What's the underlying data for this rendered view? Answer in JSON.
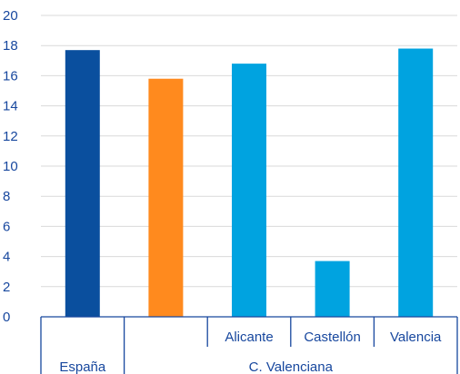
{
  "chart_data": {
    "type": "bar",
    "categories": [
      "España",
      "C. Valenciana",
      "Alicante",
      "Castellón",
      "Valencia"
    ],
    "values": [
      17.7,
      15.8,
      16.8,
      3.7,
      17.8
    ],
    "colors": [
      "#0a4f9e",
      "#ff8a1e",
      "#00a3e0",
      "#00a3e0",
      "#00a3e0"
    ],
    "subcategory_labels": [
      "",
      "",
      "Alicante",
      "Castellón",
      "Valencia"
    ],
    "group_labels": [
      {
        "label": "España",
        "span": [
          0,
          0
        ]
      },
      {
        "label": "C. Valenciana",
        "span": [
          1,
          4
        ]
      }
    ],
    "yticks": [
      "0",
      "2",
      "4",
      "6",
      "8",
      "10",
      "12",
      "14",
      "16",
      "18",
      "20"
    ],
    "ylim": [
      0,
      20
    ],
    "grid": true,
    "axis_color": "#17479e",
    "title": "",
    "xlabel": "",
    "ylabel": ""
  }
}
